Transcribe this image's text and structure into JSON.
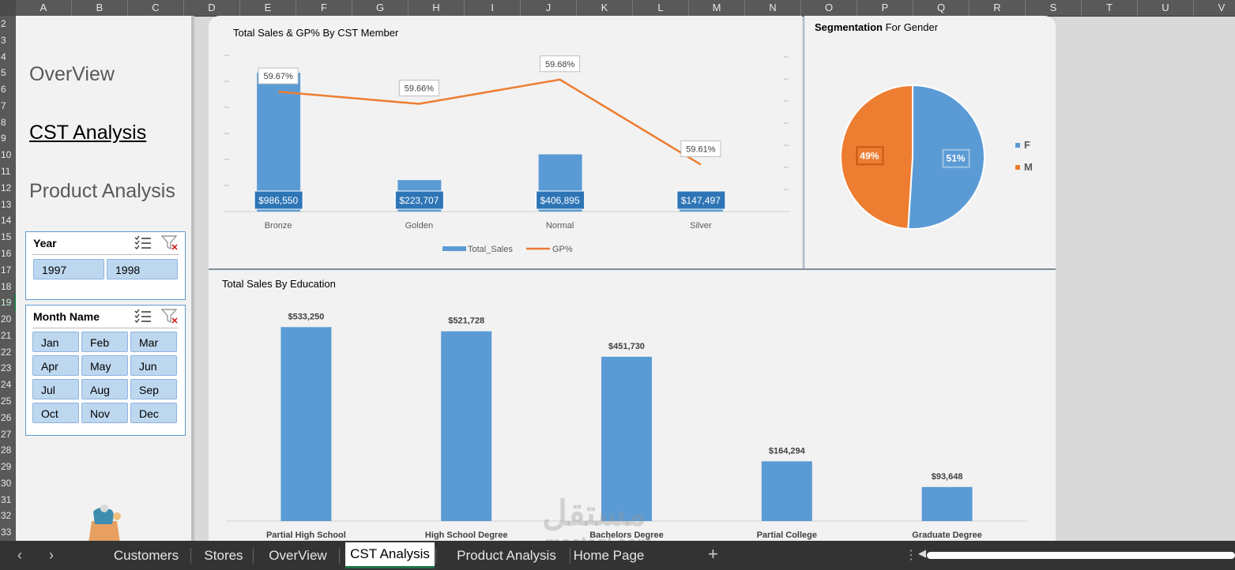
{
  "grid": {
    "columns": [
      "A",
      "B",
      "C",
      "D",
      "E",
      "F",
      "G",
      "H",
      "I",
      "J",
      "K",
      "L",
      "M",
      "N",
      "O",
      "P",
      "Q",
      "R",
      "S",
      "T",
      "U",
      "V"
    ],
    "rows": [
      "2",
      "3",
      "4",
      "5",
      "6",
      "7",
      "8",
      "9",
      "10",
      "11",
      "12",
      "13",
      "14",
      "15",
      "16",
      "17",
      "18",
      "19",
      "20",
      "21",
      "22",
      "23",
      "24",
      "25",
      "26",
      "27",
      "28",
      "29",
      "30",
      "31",
      "32",
      "33"
    ]
  },
  "nav": {
    "overview": "OverView",
    "cst_analysis": "CST Analysis",
    "product_analysis": "Product Analysis"
  },
  "year_slicer": {
    "title": "Year",
    "items": [
      "1997",
      "1998"
    ]
  },
  "month_slicer": {
    "title": "Month Name",
    "items": [
      "Jan",
      "Feb",
      "Mar",
      "Apr",
      "May",
      "Jun",
      "Jul",
      "Aug",
      "Sep",
      "Oct",
      "Nov",
      "Dec"
    ]
  },
  "colors": {
    "bar": "#5b9bd5",
    "line": "#ed7d31",
    "label_bg": "#2e75b6",
    "female": "#5b9bd5",
    "male": "#ed7d31",
    "tab_active_underline": "#217346"
  },
  "tabs": {
    "items": [
      "Customers",
      "Stores",
      "OverView",
      "CST Analysis",
      "Product Analysis",
      "Home Page"
    ],
    "active": "CST Analysis",
    "add_symbol": "+"
  },
  "watermark": {
    "text": "mostaql.com"
  },
  "chart_data": [
    {
      "type": "bar",
      "title": "Total Sales & GP% By CST Member",
      "categories": [
        "Bronze",
        "Golden",
        "Normal",
        "Silver"
      ],
      "series": [
        {
          "name": "Total_Sales",
          "type": "bar",
          "values": [
            986550,
            223707,
            406895,
            147497
          ],
          "labels": [
            "$986,550",
            "$223,707",
            "$406,895",
            "$147,497"
          ]
        },
        {
          "name": "GP%",
          "type": "line",
          "values": [
            59.67,
            59.66,
            59.68,
            59.61
          ],
          "labels": [
            "59.67%",
            "59.66%",
            "59.68%",
            "59.61%"
          ]
        }
      ],
      "legend": "bottom",
      "gp_axis_range": [
        59.57,
        59.7
      ]
    },
    {
      "type": "pie",
      "title_bold": "Segmentation",
      "title_rest": " For Gender",
      "categories": [
        "F",
        "M"
      ],
      "values": [
        51,
        49
      ],
      "labels": [
        "51%",
        "49%"
      ],
      "legend": "right"
    },
    {
      "type": "bar",
      "title": "Total Sales  By Education",
      "categories": [
        "Partial High School",
        "High School Degree",
        "Bachelors Degree",
        "Partial College",
        "Graduate Degree"
      ],
      "values": [
        533250,
        521728,
        451730,
        164294,
        93648
      ],
      "labels": [
        "$533,250",
        "$521,728",
        "$451,730",
        "$164,294",
        "$93,648"
      ]
    }
  ]
}
